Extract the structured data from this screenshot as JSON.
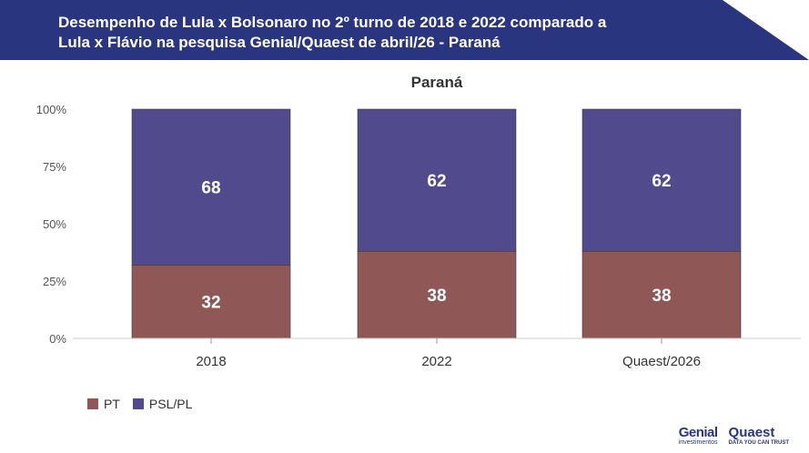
{
  "header": {
    "title_line1": "Desempenho de Lula x Bolsonaro no 2º turno de 2018 e 2022 comparado a",
    "title_line2": "Lula x Flávio na pesquisa Genial/Quaest de abril/26 - Paraná"
  },
  "colors": {
    "header_bg": "#2a3580",
    "pt": "#8f5756",
    "psl_pl": "#514b8e"
  },
  "chart_data": {
    "type": "bar",
    "stacked": true,
    "title": "Paraná",
    "categories": [
      "2018",
      "2022",
      "Quaest/2026"
    ],
    "series": [
      {
        "name": "PT",
        "values": [
          32,
          38,
          38
        ]
      },
      {
        "name": "PSL/PL",
        "values": [
          68,
          62,
          62
        ]
      }
    ],
    "ylim": [
      0,
      100
    ],
    "yticks": [
      "0%",
      "25%",
      "50%",
      "75%",
      "100%"
    ],
    "grid": false,
    "legend_position": "bottom-left"
  },
  "legend": {
    "items": [
      {
        "label": "PT",
        "color": "#8f5756"
      },
      {
        "label": "PSL/PL",
        "color": "#514b8e"
      }
    ]
  },
  "footer": {
    "logo1_text": "Genial",
    "logo1_sub": "investimentos",
    "logo2_text": "Quaest",
    "logo2_sub": "DATA YOU CAN TRUST"
  }
}
